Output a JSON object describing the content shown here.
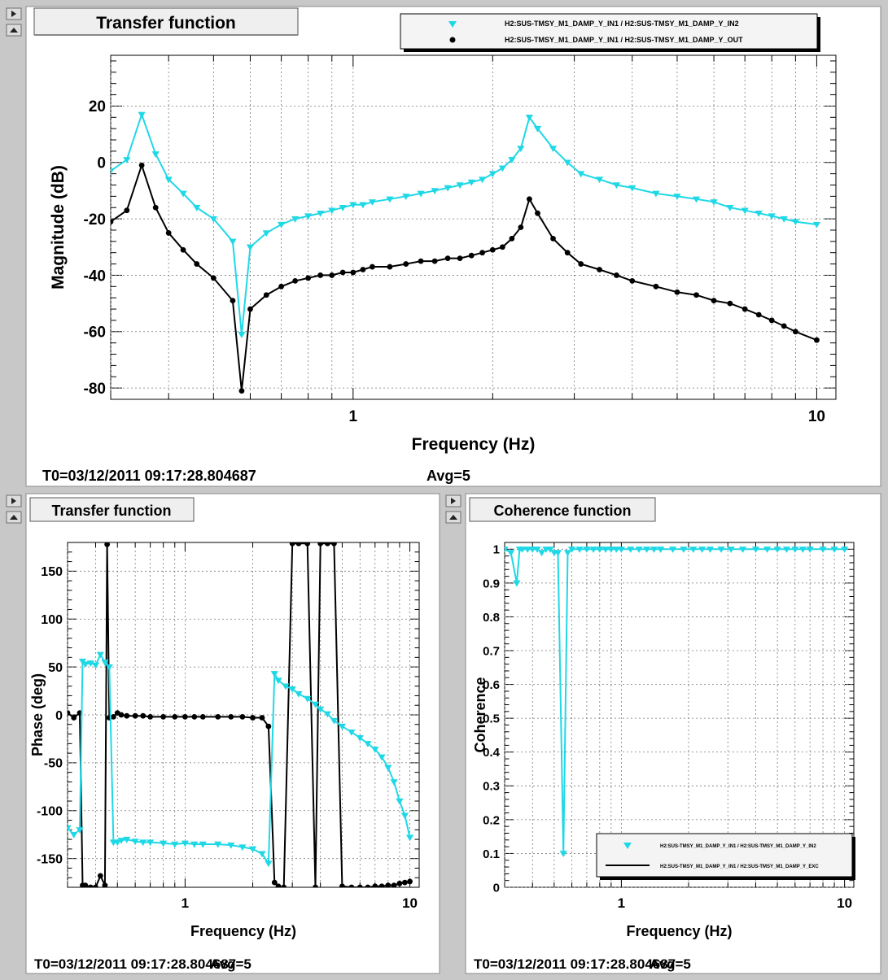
{
  "app": {
    "pads": [
      {
        "id": "top",
        "title": "Transfer function",
        "footer_t0": "T0=03/12/2011 09:17:28.804687",
        "footer_avg": "Avg=5"
      },
      {
        "id": "bottom_left",
        "title": "Transfer function",
        "footer_t0": "T0=03/12/2011 09:17:28.804687",
        "footer_avg": "Avg=5"
      },
      {
        "id": "bottom_right",
        "title": "Coherence function",
        "footer_t0": "T0=03/12/2011 09:17:28.804687",
        "footer_avg": "Avg=5"
      }
    ]
  },
  "colors": {
    "cyan": "#1fd8e6",
    "black": "#000000",
    "panel_bg": "#cfcfcf",
    "grid": "#808080"
  },
  "chart_data": [
    {
      "type": "line",
      "title": "Transfer function",
      "xlabel": "Frequency (Hz)",
      "ylabel": "Magnitude (dB)",
      "xscale": "log",
      "xlim": [
        0.3,
        11
      ],
      "ylim": [
        -84,
        38
      ],
      "xticks": [
        {
          "v": 1,
          "label": "1"
        },
        {
          "v": 10,
          "label": "10"
        }
      ],
      "yticks": [
        -80,
        -60,
        -40,
        -20,
        0,
        20
      ],
      "grid": true,
      "legend": "top-right",
      "series": [
        {
          "name": "H2:SUS-TMSY_M1_DAMP_Y_IN1 / H2:SUS-TMSY_M1_DAMP_Y_IN2",
          "color": "#1fd8e6",
          "marker": "triangle-down",
          "x": [
            0.3,
            0.325,
            0.35,
            0.375,
            0.4,
            0.43,
            0.46,
            0.5,
            0.55,
            0.575,
            0.6,
            0.65,
            0.7,
            0.75,
            0.8,
            0.85,
            0.9,
            0.95,
            1.0,
            1.05,
            1.1,
            1.2,
            1.3,
            1.4,
            1.5,
            1.6,
            1.7,
            1.8,
            1.9,
            2.0,
            2.1,
            2.2,
            2.3,
            2.4,
            2.5,
            2.7,
            2.9,
            3.1,
            3.4,
            3.7,
            4.0,
            4.5,
            5.0,
            5.5,
            6.0,
            6.5,
            7.0,
            7.5,
            8.0,
            8.5,
            9.0,
            10.0
          ],
          "y": [
            -3,
            1,
            17,
            3,
            -6,
            -11,
            -16,
            -20,
            -28,
            -61,
            -30,
            -25,
            -22,
            -20,
            -19,
            -18,
            -17,
            -16,
            -15,
            -15,
            -14,
            -13,
            -12,
            -11,
            -10,
            -9,
            -8,
            -7,
            -6,
            -4,
            -2,
            1,
            5,
            16,
            12,
            5,
            0,
            -4,
            -6,
            -8,
            -9,
            -11,
            -12,
            -13,
            -14,
            -16,
            -17,
            -18,
            -19,
            -20,
            -21,
            -22
          ]
        },
        {
          "name": "H2:SUS-TMSY_M1_DAMP_Y_IN1 / H2:SUS-TMSY_M1_DAMP_Y_OUT",
          "color": "#000000",
          "marker": "circle",
          "x": [
            0.3,
            0.325,
            0.35,
            0.375,
            0.4,
            0.43,
            0.46,
            0.5,
            0.55,
            0.575,
            0.6,
            0.65,
            0.7,
            0.75,
            0.8,
            0.85,
            0.9,
            0.95,
            1.0,
            1.05,
            1.1,
            1.2,
            1.3,
            1.4,
            1.5,
            1.6,
            1.7,
            1.8,
            1.9,
            2.0,
            2.1,
            2.2,
            2.3,
            2.4,
            2.5,
            2.7,
            2.9,
            3.1,
            3.4,
            3.7,
            4.0,
            4.5,
            5.0,
            5.5,
            6.0,
            6.5,
            7.0,
            7.5,
            8.0,
            8.5,
            9.0,
            10.0
          ],
          "y": [
            -21,
            -17,
            -1,
            -16,
            -25,
            -31,
            -36,
            -41,
            -49,
            -81,
            -52,
            -47,
            -44,
            -42,
            -41,
            -40,
            -40,
            -39,
            -39,
            -38,
            -37,
            -37,
            -36,
            -35,
            -35,
            -34,
            -34,
            -33,
            -32,
            -31,
            -30,
            -27,
            -23,
            -13,
            -18,
            -27,
            -32,
            -36,
            -38,
            -40,
            -42,
            -44,
            -46,
            -47,
            -49,
            -50,
            -52,
            -54,
            -56,
            -58,
            -60,
            -63
          ]
        }
      ]
    },
    {
      "type": "line",
      "title": "Transfer function",
      "xlabel": "Frequency (Hz)",
      "ylabel": "Phase (deg)",
      "xscale": "log",
      "xlim": [
        0.3,
        11
      ],
      "ylim": [
        -180,
        180
      ],
      "xticks": [
        {
          "v": 1,
          "label": "1"
        },
        {
          "v": 10,
          "label": "10"
        }
      ],
      "yticks": [
        -150,
        -100,
        -50,
        0,
        50,
        100,
        150
      ],
      "grid": true,
      "legend": "none",
      "series": [
        {
          "name": "",
          "color": "#1fd8e6",
          "marker": "triangle-down",
          "x": [
            0.3,
            0.32,
            0.34,
            0.35,
            0.36,
            0.38,
            0.4,
            0.42,
            0.44,
            0.46,
            0.48,
            0.5,
            0.52,
            0.55,
            0.6,
            0.65,
            0.7,
            0.8,
            0.9,
            1.0,
            1.1,
            1.2,
            1.4,
            1.6,
            1.8,
            2.0,
            2.2,
            2.35,
            2.5,
            2.6,
            2.8,
            3.0,
            3.2,
            3.5,
            3.8,
            4.0,
            4.3,
            4.6,
            5.0,
            5.5,
            6.0,
            6.5,
            7.0,
            7.5,
            8.0,
            8.5,
            9.0,
            9.5,
            10.0
          ],
          "y": [
            -118,
            -125,
            -120,
            56,
            53,
            54,
            52,
            63,
            55,
            50,
            -133,
            -133,
            -131,
            -130,
            -132,
            -133,
            -133,
            -134,
            -135,
            -134,
            -135,
            -135,
            -135,
            -136,
            -138,
            -140,
            -145,
            -155,
            43,
            36,
            30,
            27,
            22,
            17,
            11,
            6,
            1,
            -6,
            -12,
            -18,
            -24,
            -30,
            -36,
            -44,
            -55,
            -70,
            -90,
            -105,
            -128
          ]
        },
        {
          "name": "",
          "color": "#000000",
          "marker": "circle",
          "x": [
            0.3,
            0.32,
            0.34,
            0.35,
            0.36,
            0.38,
            0.4,
            0.42,
            0.44,
            0.45,
            0.46,
            0.48,
            0.5,
            0.52,
            0.55,
            0.6,
            0.65,
            0.7,
            0.8,
            0.9,
            1.0,
            1.1,
            1.2,
            1.4,
            1.6,
            1.8,
            2.0,
            2.2,
            2.35,
            2.5,
            2.6,
            2.75,
            3.0,
            3.2,
            3.5,
            3.8,
            4.0,
            4.3,
            4.6,
            5.0,
            5.5,
            6.0,
            6.5,
            7.0,
            7.5,
            8.0,
            8.5,
            9.0,
            9.5,
            10.0
          ],
          "y": [
            2,
            -3,
            2,
            -178,
            -178,
            -180,
            -180,
            -168,
            -178,
            178,
            -3,
            -2,
            2,
            0,
            -1,
            -1,
            -1,
            -2,
            -2,
            -2,
            -2,
            -2,
            -2,
            -2,
            -2,
            -2,
            -3,
            -3,
            -12,
            -175,
            -179,
            -180,
            179,
            179,
            179,
            -180,
            179,
            179,
            179,
            -179,
            -180,
            -180,
            -180,
            -179,
            -179,
            -178,
            -178,
            -176,
            -175,
            -174
          ]
        }
      ]
    },
    {
      "type": "line",
      "title": "Coherence function",
      "xlabel": "Frequency (Hz)",
      "ylabel": "Coherence",
      "xscale": "log",
      "xlim": [
        0.3,
        11
      ],
      "ylim": [
        0,
        1.02
      ],
      "xticks": [
        {
          "v": 1,
          "label": "1"
        },
        {
          "v": 10,
          "label": "10"
        }
      ],
      "yticks": [
        0,
        0.1,
        0.2,
        0.3,
        0.4,
        0.5,
        0.6,
        0.7,
        0.8,
        0.9,
        1
      ],
      "grid": true,
      "legend": "bottom-right",
      "series": [
        {
          "name": "H2:SUS-TMSY_M1_DAMP_Y_IN1 / H2:SUS-TMSY_M1_DAMP_Y_IN2",
          "color": "#1fd8e6",
          "marker": "triangle-down",
          "x": [
            0.3,
            0.32,
            0.34,
            0.35,
            0.36,
            0.38,
            0.4,
            0.42,
            0.44,
            0.46,
            0.48,
            0.5,
            0.52,
            0.55,
            0.575,
            0.6,
            0.65,
            0.7,
            0.75,
            0.8,
            0.85,
            0.9,
            0.95,
            1.0,
            1.1,
            1.2,
            1.3,
            1.4,
            1.5,
            1.7,
            1.9,
            2.1,
            2.3,
            2.5,
            2.8,
            3.1,
            3.5,
            4.0,
            4.5,
            5.0,
            5.5,
            6.0,
            6.5,
            7.0,
            8.0,
            9.0,
            10.0
          ],
          "y": [
            1.0,
            0.99,
            0.9,
            1.0,
            1.0,
            1.0,
            1.0,
            1.0,
            0.99,
            1.0,
            1.0,
            0.99,
            0.99,
            0.1,
            0.99,
            1.0,
            1.0,
            1.0,
            1.0,
            1.0,
            1.0,
            1.0,
            1.0,
            1.0,
            1.0,
            1.0,
            1.0,
            1.0,
            1.0,
            1.0,
            1.0,
            1.0,
            1.0,
            1.0,
            1.0,
            1.0,
            1.0,
            1.0,
            1.0,
            1.0,
            1.0,
            1.0,
            1.0,
            1.0,
            1.0,
            1.0,
            1.0
          ]
        },
        {
          "name": "H2:SUS-TMSY_M1_DAMP_Y_IN1 / H2:SUS-TMSY_M1_DAMP_Y_EXC",
          "color": "#000000",
          "marker": "none",
          "x": [],
          "y": []
        }
      ]
    }
  ]
}
